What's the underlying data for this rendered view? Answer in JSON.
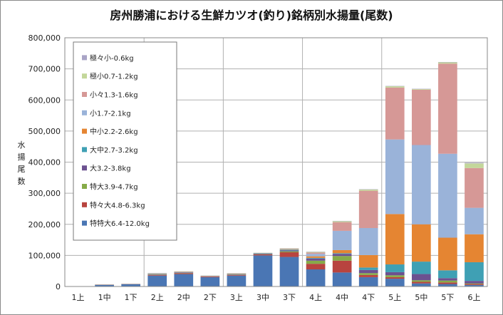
{
  "chart_data": {
    "type": "bar",
    "stacked": true,
    "title": "房州勝浦における生鮮カツオ(釣り)銘柄別水揚量(尾数)",
    "xlabel": "",
    "ylabel": "水揚尾数",
    "ylim": [
      0,
      800000
    ],
    "yticks": [
      "0",
      "100,000",
      "200,000",
      "300,000",
      "400,000",
      "500,000",
      "600,000",
      "700,000",
      "800,000"
    ],
    "grid": true,
    "legend_position": "top-left",
    "categories": [
      "1上",
      "1中",
      "1下",
      "2上",
      "2中",
      "2下",
      "3上",
      "3中",
      "3下",
      "4上",
      "4中",
      "4下",
      "5上",
      "5中",
      "5下",
      "6上"
    ],
    "series": [
      {
        "name": "特特大6.4-12.0kg",
        "color": "#4a76b4",
        "values": [
          0,
          5000,
          7000,
          35000,
          40000,
          30000,
          35000,
          100000,
          95000,
          55000,
          45000,
          30000,
          25000,
          10000,
          8000,
          5000
        ]
      },
      {
        "name": "特々大4.8-6.3kg",
        "color": "#b8443f",
        "values": [
          0,
          500,
          500,
          2000,
          3000,
          2000,
          2000,
          3000,
          15000,
          18000,
          38000,
          7000,
          5000,
          5000,
          5000,
          3000
        ]
      },
      {
        "name": "特大3.9-4.7kg",
        "color": "#86ab48",
        "values": [
          0,
          200,
          200,
          1000,
          1000,
          500,
          1000,
          1000,
          3000,
          10000,
          15000,
          6000,
          6000,
          5000,
          6000,
          2000
        ]
      },
      {
        "name": "大3.2-3.8kg",
        "color": "#6c5190",
        "values": [
          0,
          300,
          300,
          1500,
          1500,
          500,
          1500,
          1500,
          3000,
          7000,
          7000,
          10000,
          10000,
          20000,
          8000,
          8000
        ]
      },
      {
        "name": "大中2.7-3.2kg",
        "color": "#3fa0b4",
        "values": [
          0,
          300,
          300,
          1000,
          1000,
          500,
          1000,
          1000,
          2500,
          2000,
          2000,
          8000,
          25000,
          40000,
          25000,
          60000
        ]
      },
      {
        "name": "中小2.2-2.6kg",
        "color": "#e58532",
        "values": [
          0,
          200,
          200,
          1000,
          1000,
          500,
          1000,
          500,
          1500,
          5000,
          10000,
          40000,
          162000,
          120000,
          105000,
          90000
        ]
      },
      {
        "name": "小1.7-2.1kg",
        "color": "#9ab3d9",
        "values": [
          0,
          100,
          100,
          1000,
          500,
          500,
          500,
          500,
          1000,
          8000,
          62000,
          87000,
          240000,
          255000,
          270000,
          85000
        ]
      },
      {
        "name": "小々1.3-1.6kg",
        "color": "#d69896",
        "values": [
          0,
          100,
          100,
          500,
          500,
          500,
          500,
          500,
          1000,
          4000,
          28000,
          120000,
          167000,
          178000,
          290000,
          128000
        ]
      },
      {
        "name": "極小0.7-1.2kg",
        "color": "#c3d79a",
        "values": [
          0,
          100,
          100,
          500,
          500,
          500,
          500,
          500,
          1000,
          2000,
          3000,
          4000,
          4000,
          2000,
          4000,
          15000
        ]
      },
      {
        "name": "極々小-0.6kg",
        "color": "#a9a4c6",
        "values": [
          0,
          100,
          100,
          200,
          200,
          200,
          200,
          200,
          500,
          1000,
          1000,
          1000,
          1000,
          1000,
          1000,
          2000
        ]
      }
    ]
  }
}
